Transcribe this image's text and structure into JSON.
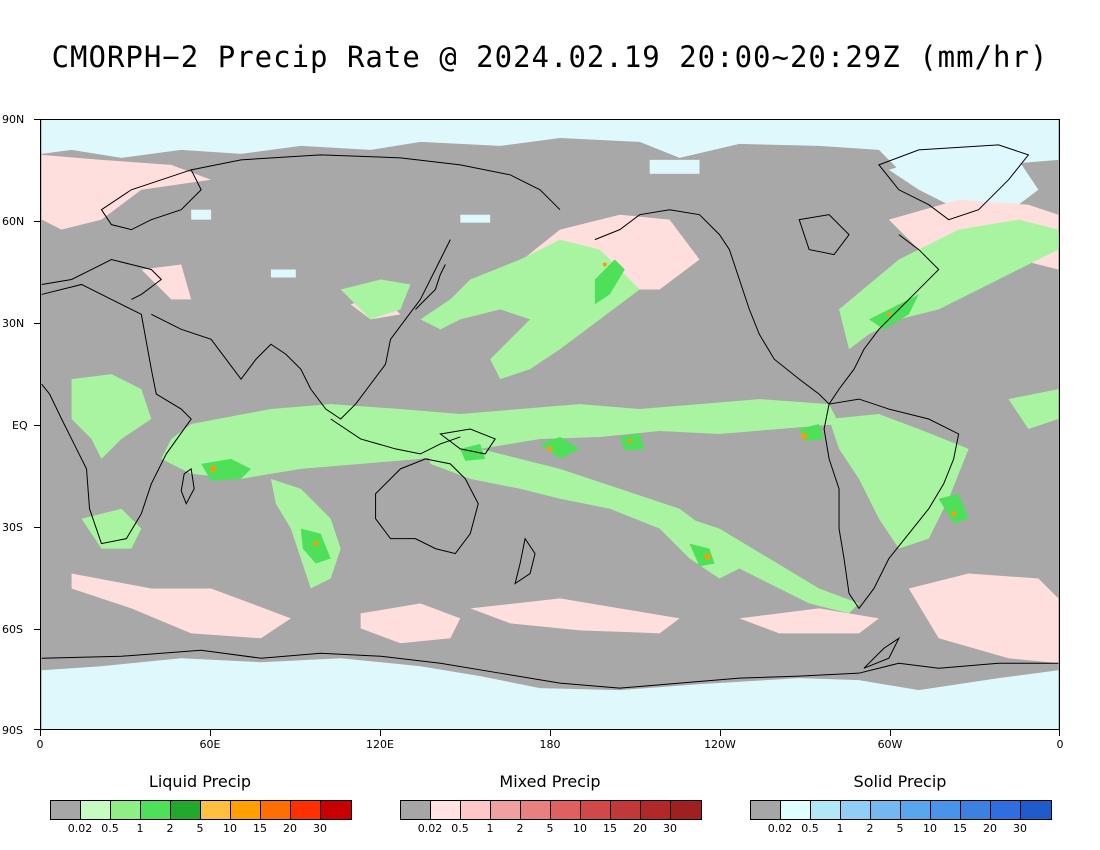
{
  "title": "CMORPH−2 Precip Rate @ 2024.02.19 20:00~20:29Z (mm/hr)",
  "axes": {
    "lat_labels": [
      "90N",
      "60N",
      "30N",
      "EQ",
      "30S",
      "60S",
      "90S"
    ],
    "lon_labels": [
      "0",
      "60E",
      "120E",
      "180",
      "120W",
      "60W",
      "0"
    ]
  },
  "colors": {
    "no_data_background": "#a8a8a8",
    "polar_snow": "#dff8fb",
    "coastline": "#000000"
  },
  "legends": [
    {
      "title": "Liquid Precip",
      "colors": [
        "#a6a6a6",
        "#c6fcc0",
        "#8ef084",
        "#4fe05a",
        "#22a82a",
        "#ffc040",
        "#ffa000",
        "#ff6e00",
        "#ff3000",
        "#c80000"
      ],
      "ticks": [
        "0.02",
        "0.5",
        "1",
        "2",
        "5",
        "10",
        "15",
        "20",
        "30"
      ]
    },
    {
      "title": "Mixed Precip",
      "colors": [
        "#a6a6a6",
        "#ffe2e2",
        "#ffc8c8",
        "#f0a0a0",
        "#e88080",
        "#e06060",
        "#d04848",
        "#c03838",
        "#b02828",
        "#a02020"
      ],
      "ticks": [
        "0.02",
        "0.5",
        "1",
        "2",
        "5",
        "10",
        "15",
        "20",
        "30"
      ]
    },
    {
      "title": "Solid Precip",
      "colors": [
        "#a6a6a6",
        "#e0ffff",
        "#b0e8f8",
        "#90cef8",
        "#74b8f0",
        "#58a6ee",
        "#4894ea",
        "#3c80e2",
        "#2e6ede",
        "#1e5ccc"
      ],
      "ticks": [
        "0.02",
        "0.5",
        "1",
        "2",
        "5",
        "10",
        "15",
        "20",
        "30"
      ]
    }
  ]
}
